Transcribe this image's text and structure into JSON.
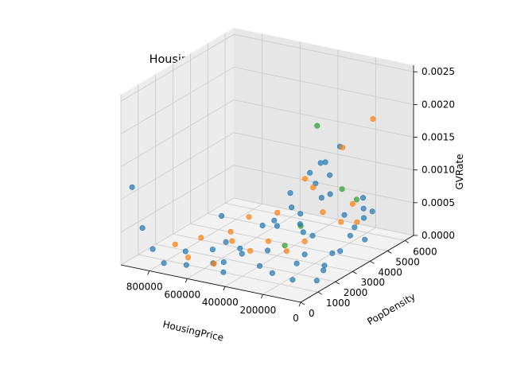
{
  "chart_data": {
    "type": "scatter",
    "projection": "3d",
    "title": "HousingPrice vs PopDensity vs GVRate",
    "xlabel": "HousingPrice",
    "ylabel": "PopDensity",
    "zlabel": "GVRate",
    "xlim": [
      0,
      950000
    ],
    "ylim": [
      0,
      6500
    ],
    "zlim": [
      0,
      0.0026
    ],
    "x_ticks": [
      0,
      200000,
      400000,
      600000,
      800000
    ],
    "x_tick_labels": [
      "0",
      "200000",
      "400000",
      "600000",
      "800000"
    ],
    "y_ticks": [
      0,
      1000,
      2000,
      3000,
      4000,
      5000,
      6000
    ],
    "y_tick_labels": [
      "0",
      "1000",
      "2000",
      "3000",
      "4000",
      "5000",
      "6000"
    ],
    "z_ticks": [
      0,
      0.0005,
      0.001,
      0.0015,
      0.002,
      0.0025
    ],
    "z_tick_labels": [
      "0.0000",
      "0.0005",
      "0.0010",
      "0.0015",
      "0.0020",
      "0.0025"
    ],
    "grid": true,
    "series": [
      {
        "color": "#1f77b4",
        "points": [
          [
            150000,
            3000,
            0.0
          ],
          [
            200000,
            4000,
            0.0
          ],
          [
            250000,
            2500,
            5e-05
          ],
          [
            300000,
            3500,
            0.0
          ],
          [
            180000,
            1500,
            0.0
          ],
          [
            350000,
            4500,
            0.0001
          ],
          [
            400000,
            2000,
            0.0
          ],
          [
            450000,
            3000,
            5e-05
          ],
          [
            500000,
            1000,
            0.0
          ],
          [
            550000,
            2500,
            0.0001
          ],
          [
            600000,
            1500,
            0.0
          ],
          [
            650000,
            500,
            0.0001
          ],
          [
            700000,
            1000,
            0.0002
          ],
          [
            750000,
            300,
            0.0001
          ],
          [
            800000,
            200,
            0.0003
          ],
          [
            120000,
            5000,
            0.0001
          ],
          [
            220000,
            5500,
            0.00015
          ],
          [
            320000,
            6000,
            0.0002
          ],
          [
            280000,
            3200,
            0.0004
          ],
          [
            260000,
            2800,
            0.0006
          ],
          [
            240000,
            2600,
            0.0008
          ],
          [
            300000,
            3800,
            0.0012
          ],
          [
            280000,
            4200,
            0.0013
          ],
          [
            250000,
            4400,
            0.0011
          ],
          [
            220000,
            3600,
            0.0009
          ],
          [
            330000,
            3000,
            0.001
          ],
          [
            360000,
            3400,
            0.0007
          ],
          [
            270000,
            5200,
            0.0014
          ],
          [
            310000,
            4800,
            0.0012
          ],
          [
            200000,
            5800,
            0.0004
          ],
          [
            180000,
            5600,
            0.0003
          ],
          [
            160000,
            4600,
            0.0002
          ],
          [
            140000,
            3800,
            0.0001
          ],
          [
            100000,
            2400,
            5e-05
          ],
          [
            80000,
            1800,
            0.0
          ],
          [
            420000,
            1200,
            0.0003
          ],
          [
            480000,
            800,
            0.0002
          ],
          [
            520000,
            600,
            0.0004
          ],
          [
            900000,
            100,
            0.0012
          ],
          [
            850000,
            150,
            0.0006
          ],
          [
            380000,
            5000,
            0.0008
          ],
          [
            340000,
            5400,
            0.0006
          ],
          [
            230000,
            6100,
            0.0005
          ],
          [
            190000,
            6200,
            0.0003
          ],
          [
            440000,
            2600,
            0.0005
          ],
          [
            560000,
            1800,
            0.0003
          ],
          [
            620000,
            2200,
            0.0006
          ],
          [
            470000,
            3600,
            0.0004
          ],
          [
            510000,
            4200,
            0.0002
          ],
          [
            260000,
            1200,
            0.0001
          ]
        ]
      },
      {
        "color": "#ff7f0e",
        "points": [
          [
            300000,
            3500,
            0.0002
          ],
          [
            350000,
            3000,
            0.0001
          ],
          [
            400000,
            2500,
            0.0003
          ],
          [
            450000,
            2000,
            0.0002
          ],
          [
            500000,
            1500,
            0.0004
          ],
          [
            550000,
            1000,
            0.0001
          ],
          [
            600000,
            800,
            0.0005
          ],
          [
            250000,
            4000,
            0.0006
          ],
          [
            200000,
            4500,
            0.0004
          ],
          [
            320000,
            4200,
            0.0009
          ],
          [
            280000,
            3300,
            0.0012
          ],
          [
            150000,
            5800,
            0.0018
          ],
          [
            210000,
            4700,
            0.0015
          ],
          [
            380000,
            2800,
            0.0007
          ],
          [
            420000,
            1600,
            0.0008
          ],
          [
            180000,
            5200,
            0.0003
          ],
          [
            650000,
            600,
            0.0002
          ],
          [
            700000,
            400,
            0.0004
          ],
          [
            480000,
            1200,
            0.0006
          ],
          [
            230000,
            5500,
            0.0005
          ]
        ]
      },
      {
        "color": "#2ca02c",
        "points": [
          [
            280000,
            4000,
            0.0019
          ],
          [
            330000,
            3600,
            0.0004
          ],
          [
            240000,
            5000,
            0.0008
          ],
          [
            200000,
            5400,
            0.0006
          ],
          [
            350000,
            2900,
            0.0002
          ]
        ]
      }
    ]
  }
}
